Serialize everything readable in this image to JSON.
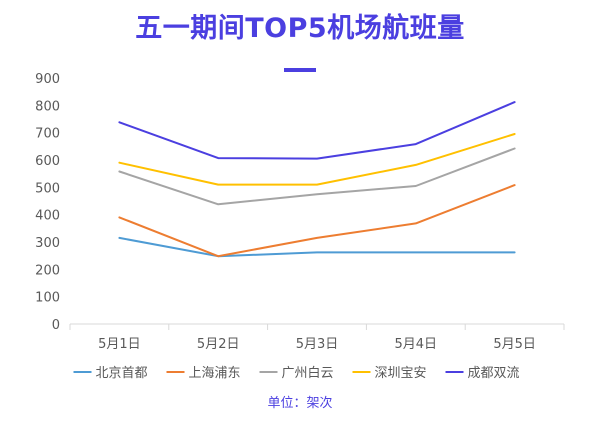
{
  "theme": {
    "title_color": "#4B3FE0",
    "axis_color": "#D9D9D9",
    "text_color": "#595959"
  },
  "chart_data": {
    "type": "line",
    "title": "五一期间TOP5机场航班量",
    "unit_note": "单位：架次",
    "categories": [
      "5月1日",
      "5月2日",
      "5月3日",
      "5月4日",
      "5月5日"
    ],
    "ylim": [
      0,
      900
    ],
    "yticks": [
      0,
      100,
      200,
      300,
      400,
      500,
      600,
      700,
      800,
      900
    ],
    "grid": false,
    "legend_position": "bottom",
    "series": [
      {
        "name": "北京首都",
        "color": "#4E9BD4",
        "values": [
          315,
          248,
          262,
          262,
          262
        ]
      },
      {
        "name": "上海浦东",
        "color": "#ED7D31",
        "values": [
          390,
          248,
          315,
          368,
          508
        ]
      },
      {
        "name": "广州白云",
        "color": "#A5A5A5",
        "values": [
          558,
          438,
          475,
          505,
          642
        ]
      },
      {
        "name": "深圳宝安",
        "color": "#FFC000",
        "values": [
          590,
          510,
          510,
          582,
          695
        ]
      },
      {
        "name": "成都双流",
        "color": "#4B3FE0",
        "values": [
          738,
          607,
          605,
          658,
          812
        ]
      }
    ]
  }
}
